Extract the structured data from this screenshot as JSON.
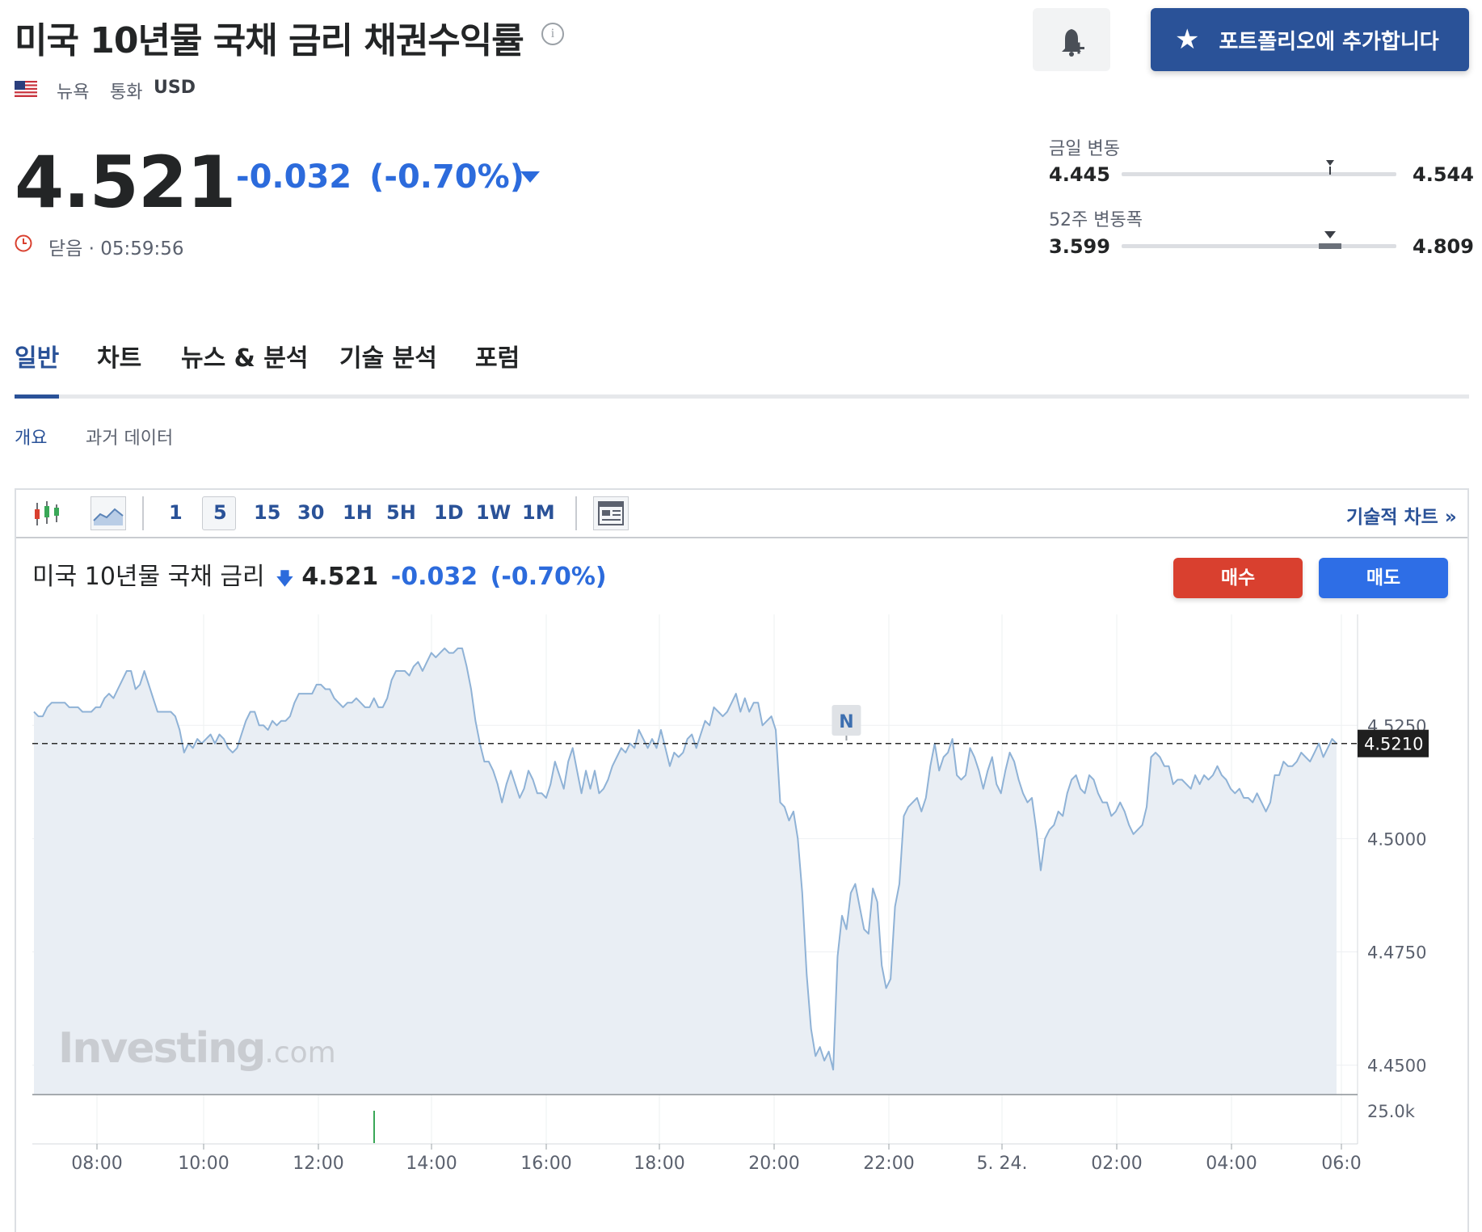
{
  "header": {
    "title": "미국 10년물 국채 금리 채권수익률",
    "info_icon": "info-icon",
    "bell_icon": "bell-plus-icon",
    "portfolio_button": "포트폴리오에 추가합니다",
    "star_icon": "star-icon",
    "exchange": "뉴욕",
    "currency_label": "통화",
    "currency": "USD"
  },
  "quote": {
    "price": "4.521",
    "change": "-0.032",
    "change_pct": "(-0.70%)",
    "status": "닫음 · 05:59:56",
    "down_color": "#2c6bdc"
  },
  "ranges": {
    "day": {
      "label": "금일 변동",
      "low": "4.445",
      "high": "4.544",
      "marker_fraction": 0.76
    },
    "week52": {
      "label": "52주 변동폭",
      "low": "3.599",
      "high": "4.809",
      "marker_fraction": 0.76
    }
  },
  "tabs": [
    {
      "label": "일반",
      "active": true
    },
    {
      "label": "차트",
      "active": false
    },
    {
      "label": "뉴스 & 분석",
      "active": false
    },
    {
      "label": "기술 분석",
      "active": false
    },
    {
      "label": "포럼",
      "active": false
    }
  ],
  "subtabs": [
    {
      "label": "개요",
      "active": true
    },
    {
      "label": "과거 데이터",
      "active": false
    }
  ],
  "toolbar": {
    "candle_icon": "candlestick-icon",
    "area_icon": "area-chart-icon",
    "intervals": [
      "1",
      "5",
      "15",
      "30",
      "1H",
      "5H",
      "1D",
      "1W",
      "1M"
    ],
    "selected_interval": "5",
    "layout_icon": "layout-icon",
    "technical_link": "기술적 차트 »"
  },
  "chart_header": {
    "name": "미국 10년물 국채 금리",
    "price": "4.521",
    "change": "-0.032",
    "change_pct": "(-0.70%)",
    "buy": "매수",
    "sell": "매도"
  },
  "chart_data": {
    "type": "area",
    "watermark": "Investing",
    "watermark_suffix": ".com",
    "news_marker": "N",
    "current_label": "4.5210",
    "current_value": 4.521,
    "ylim": [
      4.4435,
      4.5495
    ],
    "y_ticks": [
      "4.5250",
      "4.5000",
      "4.4750",
      "4.4500"
    ],
    "volume_tick": "25.0k",
    "x_ticks": [
      "08:00",
      "10:00",
      "12:00",
      "14:00",
      "16:00",
      "18:00",
      "20:00",
      "22:00",
      "5. 24.",
      "02:00",
      "04:00",
      "06:0"
    ],
    "line_color": "#8fb2d6",
    "fill_color": "#e9eef4",
    "values": [
      4.528,
      4.527,
      4.527,
      4.529,
      4.53,
      4.53,
      4.53,
      4.53,
      4.529,
      4.529,
      4.529,
      4.528,
      4.528,
      4.528,
      4.529,
      4.529,
      4.531,
      4.532,
      4.531,
      4.533,
      4.535,
      4.537,
      4.537,
      4.533,
      4.534,
      4.537,
      4.534,
      4.531,
      4.528,
      4.528,
      4.528,
      4.528,
      4.527,
      4.524,
      4.519,
      4.521,
      4.52,
      4.522,
      4.521,
      4.522,
      4.523,
      4.521,
      4.523,
      4.522,
      4.52,
      4.519,
      4.52,
      4.523,
      4.526,
      4.528,
      4.528,
      4.525,
      4.525,
      4.524,
      4.526,
      4.525,
      4.526,
      4.526,
      4.527,
      4.53,
      4.532,
      4.532,
      4.532,
      4.532,
      4.534,
      4.534,
      4.533,
      4.533,
      4.531,
      4.53,
      4.529,
      4.53,
      4.53,
      4.531,
      4.53,
      4.529,
      4.529,
      4.531,
      4.529,
      4.529,
      4.531,
      4.535,
      4.537,
      4.537,
      4.537,
      4.536,
      4.538,
      4.539,
      4.537,
      4.539,
      4.541,
      4.54,
      4.541,
      4.542,
      4.541,
      4.541,
      4.542,
      4.542,
      4.538,
      4.533,
      4.526,
      4.521,
      4.517,
      4.517,
      4.515,
      4.512,
      4.508,
      4.512,
      4.515,
      4.512,
      4.509,
      4.511,
      4.515,
      4.513,
      4.51,
      4.51,
      4.509,
      4.512,
      4.517,
      4.514,
      4.511,
      4.517,
      4.52,
      4.515,
      4.51,
      4.515,
      4.511,
      4.515,
      4.51,
      4.511,
      4.513,
      4.516,
      4.518,
      4.52,
      4.519,
      4.521,
      4.52,
      4.524,
      4.522,
      4.52,
      4.522,
      4.52,
      4.524,
      4.52,
      4.516,
      4.519,
      4.518,
      4.519,
      4.522,
      4.523,
      4.52,
      4.523,
      4.526,
      4.525,
      4.529,
      4.528,
      4.527,
      4.528,
      4.53,
      4.532,
      4.528,
      4.531,
      4.528,
      4.53,
      4.53,
      4.525,
      4.526,
      4.527,
      4.524,
      4.508,
      4.507,
      4.504,
      4.506,
      4.5,
      4.488,
      4.47,
      4.458,
      4.452,
      4.454,
      4.451,
      4.453,
      4.449,
      4.474,
      4.483,
      4.48,
      4.488,
      4.49,
      4.485,
      4.48,
      4.479,
      4.489,
      4.486,
      4.472,
      4.467,
      4.469,
      4.485,
      4.49,
      4.505,
      4.507,
      4.508,
      4.509,
      4.506,
      4.509,
      4.516,
      4.521,
      4.515,
      4.518,
      4.519,
      4.522,
      4.514,
      4.513,
      4.514,
      4.52,
      4.518,
      4.515,
      4.511,
      4.515,
      4.518,
      4.512,
      4.51,
      4.515,
      4.519,
      4.517,
      4.513,
      4.51,
      4.508,
      4.509,
      4.502,
      4.493,
      4.5,
      4.502,
      4.503,
      4.506,
      4.505,
      4.51,
      4.513,
      4.514,
      4.511,
      4.51,
      4.514,
      4.513,
      4.51,
      4.508,
      4.508,
      4.505,
      4.506,
      4.508,
      4.506,
      4.503,
      4.501,
      4.502,
      4.503,
      4.507,
      4.518,
      4.519,
      4.518,
      4.516,
      4.516,
      4.512,
      4.513,
      4.513,
      4.512,
      4.511,
      4.514,
      4.512,
      4.514,
      4.513,
      4.514,
      4.516,
      4.514,
      4.513,
      4.511,
      4.51,
      4.511,
      4.509,
      4.509,
      4.508,
      4.51,
      4.508,
      4.506,
      4.508,
      4.514,
      4.514,
      4.517,
      4.516,
      4.516,
      4.517,
      4.519,
      4.518,
      4.517,
      4.519,
      4.521,
      4.518,
      4.52,
      4.522,
      4.521
    ]
  }
}
